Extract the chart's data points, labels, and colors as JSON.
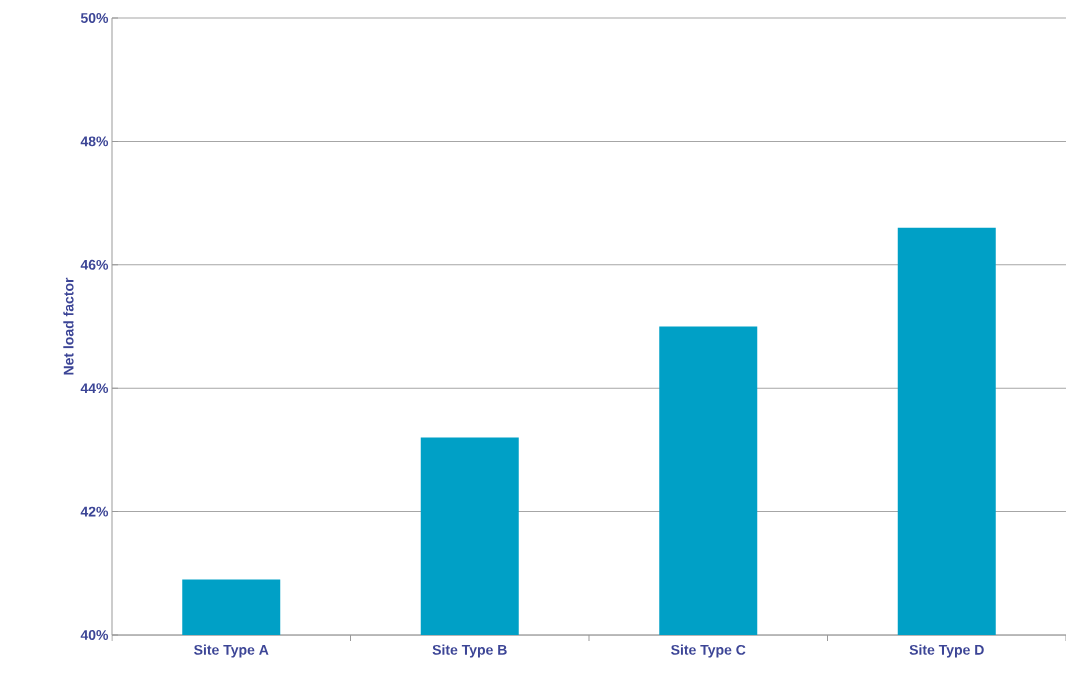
{
  "chart_data": {
    "type": "bar",
    "ylabel": "Net load factor",
    "categories": [
      "Site Type A",
      "Site Type B",
      "Site Type C",
      "Site Type D"
    ],
    "values": [
      40.9,
      43.2,
      45.0,
      46.6
    ],
    "color": "#00a0c6",
    "ylim": [
      40,
      50
    ],
    "yticks": [
      {
        "value": 40,
        "label": "40%"
      },
      {
        "value": 42,
        "label": "42%"
      },
      {
        "value": 44,
        "label": "44%"
      },
      {
        "value": 46,
        "label": "46%"
      },
      {
        "value": 48,
        "label": "48%"
      },
      {
        "value": 50,
        "label": "50%"
      }
    ],
    "grid": "y"
  }
}
